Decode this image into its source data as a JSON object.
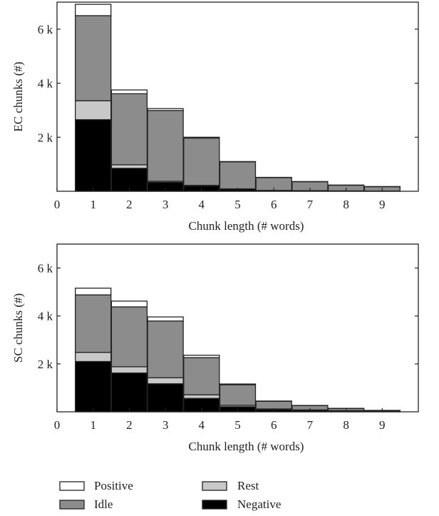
{
  "chart_data": [
    {
      "type": "bar",
      "stacked": true,
      "categories": [
        "1",
        "2",
        "3",
        "4",
        "5",
        "6",
        "7",
        "8",
        "9"
      ],
      "xlabel": "Chunk length (# words)",
      "ylabel": "EC chunks (#)",
      "xlim": [
        0,
        10
      ],
      "ylim": [
        0,
        7000
      ],
      "x_ticks": [
        "0",
        "1",
        "2",
        "3",
        "4",
        "5",
        "6",
        "7",
        "8",
        "9"
      ],
      "y_ticks": [
        {
          "value": 2000,
          "label": "2 k"
        },
        {
          "value": 4000,
          "label": "4 k"
        },
        {
          "value": 6000,
          "label": "6 k"
        }
      ],
      "grid": false,
      "series": [
        {
          "name": "Negative",
          "values": [
            2650,
            850,
            330,
            200,
            80,
            30,
            20,
            10,
            5
          ]
        },
        {
          "name": "Rest",
          "values": [
            700,
            130,
            40,
            20,
            10,
            5,
            5,
            5,
            5
          ]
        },
        {
          "name": "Idle",
          "values": [
            3150,
            2630,
            2620,
            1750,
            1000,
            470,
            330,
            210,
            160
          ]
        },
        {
          "name": "Positive",
          "values": [
            420,
            140,
            70,
            30,
            10,
            10,
            5,
            5,
            5
          ]
        }
      ]
    },
    {
      "type": "bar",
      "stacked": true,
      "categories": [
        "1",
        "2",
        "3",
        "4",
        "5",
        "6",
        "7",
        "8",
        "9"
      ],
      "xlabel": "Chunk length (# words)",
      "ylabel": "SC chunks (#)",
      "xlim": [
        0,
        10
      ],
      "ylim": [
        0,
        7000
      ],
      "x_ticks": [
        "0",
        "1",
        "2",
        "3",
        "4",
        "5",
        "6",
        "7",
        "8",
        "9"
      ],
      "y_ticks": [
        {
          "value": 2000,
          "label": "2 k"
        },
        {
          "value": 4000,
          "label": "4 k"
        },
        {
          "value": 6000,
          "label": "6 k"
        }
      ],
      "grid": false,
      "series": [
        {
          "name": "Negative",
          "values": [
            2100,
            1620,
            1170,
            560,
            210,
            100,
            70,
            40,
            20
          ]
        },
        {
          "name": "Rest",
          "values": [
            380,
            260,
            250,
            150,
            60,
            20,
            10,
            10,
            5
          ]
        },
        {
          "name": "Idle",
          "values": [
            2400,
            2500,
            2370,
            1550,
            860,
            320,
            180,
            90,
            30
          ]
        },
        {
          "name": "Positive",
          "values": [
            280,
            240,
            170,
            100,
            30,
            10,
            5,
            5,
            5
          ]
        }
      ]
    }
  ],
  "legend": {
    "position": "bottom",
    "items": [
      {
        "label": "Positive",
        "color": "#ffffff"
      },
      {
        "label": "Rest",
        "color": "#c8c8c8"
      },
      {
        "label": "Idle",
        "color": "#8c8c8c"
      },
      {
        "label": "Negative",
        "color": "#000000"
      }
    ]
  },
  "colors": {
    "Positive": "#ffffff",
    "Rest": "#c8c8c8",
    "Idle": "#8c8c8c",
    "Negative": "#000000",
    "stroke": "#222222"
  }
}
